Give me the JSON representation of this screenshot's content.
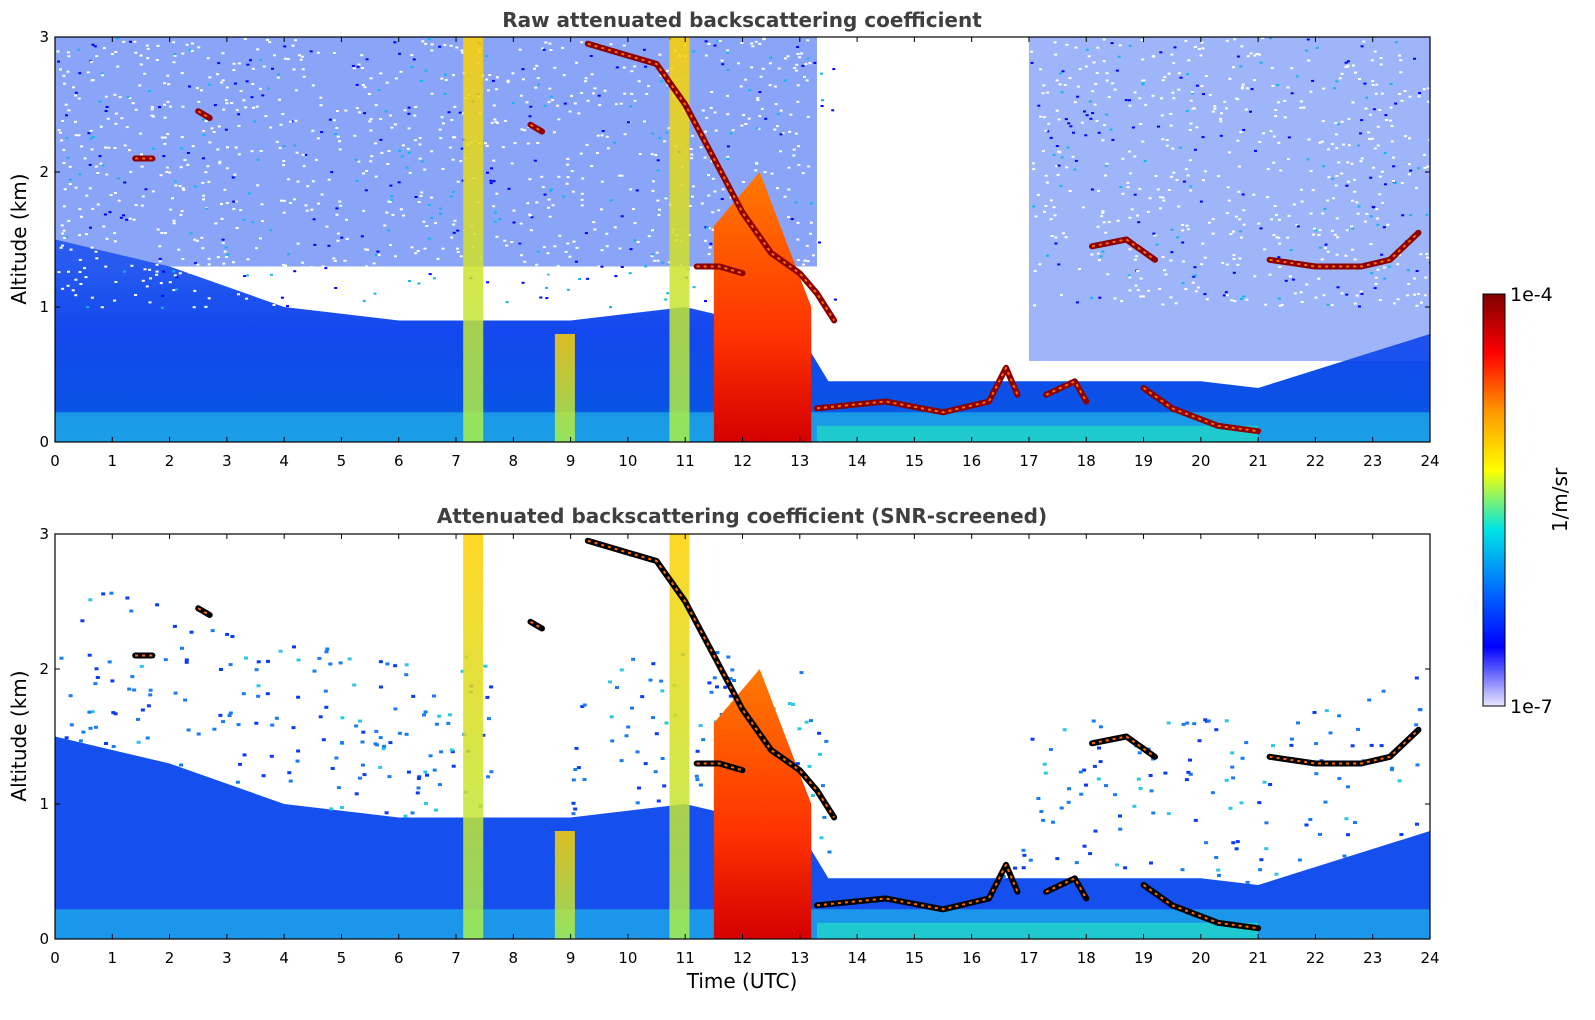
{
  "chart_data": [
    {
      "type": "heatmap",
      "title": "Raw attenuated backscattering coefficient",
      "xlabel": "",
      "ylabel": "Altitude (km)",
      "xlim": [
        0,
        24
      ],
      "ylim": [
        0,
        3
      ],
      "x_ticks": [
        "0",
        "1",
        "2",
        "3",
        "4",
        "5",
        "6",
        "7",
        "8",
        "9",
        "10",
        "11",
        "12",
        "13",
        "14",
        "15",
        "16",
        "17",
        "18",
        "19",
        "20",
        "21",
        "22",
        "23",
        "24"
      ],
      "y_ticks": [
        "0",
        "1",
        "2",
        "3"
      ],
      "colorscale": "jet",
      "screened": false,
      "features": {
        "boundary_layer_top_km": [
          [
            0,
            1.5
          ],
          [
            2,
            1.3
          ],
          [
            4,
            1.0
          ],
          [
            6,
            0.9
          ],
          [
            9,
            0.9
          ],
          [
            11,
            1.0
          ],
          [
            13,
            0.8
          ],
          [
            13.5,
            0.45
          ],
          [
            20,
            0.45
          ],
          [
            21,
            0.4
          ],
          [
            24,
            0.8
          ]
        ],
        "plumes": [
          [
            7.3,
            3.0
          ],
          [
            8.9,
            0.8
          ],
          [
            10.9,
            3.0
          ]
        ],
        "dense_aerosol_block": {
          "x_range": [
            11.5,
            13.2
          ],
          "top_km": 1.6
        },
        "layer_traces": [
          [
            [
              9.3,
              2.95
            ],
            [
              10.5,
              2.8
            ],
            [
              11.0,
              2.5
            ],
            [
              11.5,
              2.1
            ],
            [
              12.0,
              1.7
            ],
            [
              12.5,
              1.4
            ],
            [
              13.0,
              1.25
            ],
            [
              13.3,
              1.1
            ],
            [
              13.6,
              0.9
            ]
          ],
          [
            [
              11.2,
              1.3
            ],
            [
              11.6,
              1.3
            ],
            [
              12.0,
              1.25
            ]
          ],
          [
            [
              13.3,
              0.25
            ],
            [
              14.5,
              0.3
            ],
            [
              15.5,
              0.22
            ],
            [
              16.3,
              0.3
            ],
            [
              16.6,
              0.55
            ],
            [
              16.8,
              0.35
            ]
          ],
          [
            [
              17.3,
              0.35
            ],
            [
              17.8,
              0.45
            ],
            [
              18.0,
              0.3
            ]
          ],
          [
            [
              18.1,
              1.45
            ],
            [
              18.7,
              1.5
            ],
            [
              19.2,
              1.35
            ]
          ],
          [
            [
              19.0,
              0.4
            ],
            [
              19.5,
              0.25
            ],
            [
              20.3,
              0.12
            ],
            [
              21.0,
              0.08
            ]
          ],
          [
            [
              21.2,
              1.35
            ],
            [
              22.0,
              1.3
            ],
            [
              22.8,
              1.3
            ],
            [
              23.3,
              1.35
            ],
            [
              23.8,
              1.55
            ]
          ],
          [
            [
              1.4,
              2.1
            ],
            [
              1.7,
              2.1
            ]
          ],
          [
            [
              8.3,
              2.35
            ],
            [
              8.5,
              2.3
            ]
          ],
          [
            [
              2.5,
              2.45
            ],
            [
              2.7,
              2.4
            ]
          ]
        ]
      }
    },
    {
      "type": "heatmap",
      "title": "Attenuated backscattering coefficient (SNR-screened)",
      "xlabel": "Time (UTC)",
      "ylabel": "Altitude (km)",
      "xlim": [
        0,
        24
      ],
      "ylim": [
        0,
        3
      ],
      "x_ticks": [
        "0",
        "1",
        "2",
        "3",
        "4",
        "5",
        "6",
        "7",
        "8",
        "9",
        "10",
        "11",
        "12",
        "13",
        "14",
        "15",
        "16",
        "17",
        "18",
        "19",
        "20",
        "21",
        "22",
        "23",
        "24"
      ],
      "y_ticks": [
        "0",
        "1",
        "2",
        "3"
      ],
      "colorscale": "jet",
      "screened": true
    }
  ],
  "colorbar": {
    "label": "1/m/sr",
    "max_label": "1e-4",
    "min_label": "1e-7",
    "stops": [
      "#7f0000",
      "#ff0000",
      "#ff9900",
      "#ffff00",
      "#00e5e5",
      "#0070ff",
      "#0000ff",
      "#e8e8ff"
    ]
  }
}
